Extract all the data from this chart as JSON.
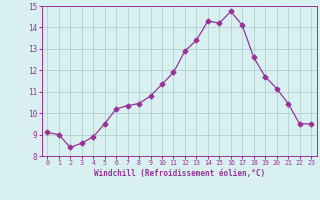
{
  "x": [
    0,
    1,
    2,
    3,
    4,
    5,
    6,
    7,
    8,
    9,
    10,
    11,
    12,
    13,
    14,
    15,
    16,
    17,
    18,
    19,
    20,
    21,
    22,
    23
  ],
  "y": [
    9.1,
    9.0,
    8.4,
    8.6,
    8.9,
    9.5,
    10.2,
    10.35,
    10.45,
    10.8,
    11.35,
    11.9,
    12.9,
    13.4,
    14.3,
    14.2,
    14.75,
    14.1,
    12.6,
    11.7,
    11.15,
    10.45,
    9.5,
    9.5
  ],
  "line_color": "#993399",
  "marker": "D",
  "marker_size": 2.5,
  "bg_color": "#d9f0f0",
  "grid_color": "#aacccc",
  "xlabel": "Windchill (Refroidissement éolien,°C)",
  "xlabel_color": "#993399",
  "tick_color": "#993399",
  "ylim": [
    8,
    15
  ],
  "xlim": [
    -0.5,
    23.5
  ],
  "yticks": [
    8,
    9,
    10,
    11,
    12,
    13,
    14,
    15
  ],
  "xticks": [
    0,
    1,
    2,
    3,
    4,
    5,
    6,
    7,
    8,
    9,
    10,
    11,
    12,
    13,
    14,
    15,
    16,
    17,
    18,
    19,
    20,
    21,
    22,
    23
  ],
  "xtick_labels": [
    "0",
    "1",
    "2",
    "3",
    "4",
    "5",
    "6",
    "7",
    "8",
    "9",
    "10",
    "11",
    "12",
    "13",
    "14",
    "15",
    "16",
    "17",
    "18",
    "19",
    "20",
    "21",
    "22",
    "23"
  ]
}
